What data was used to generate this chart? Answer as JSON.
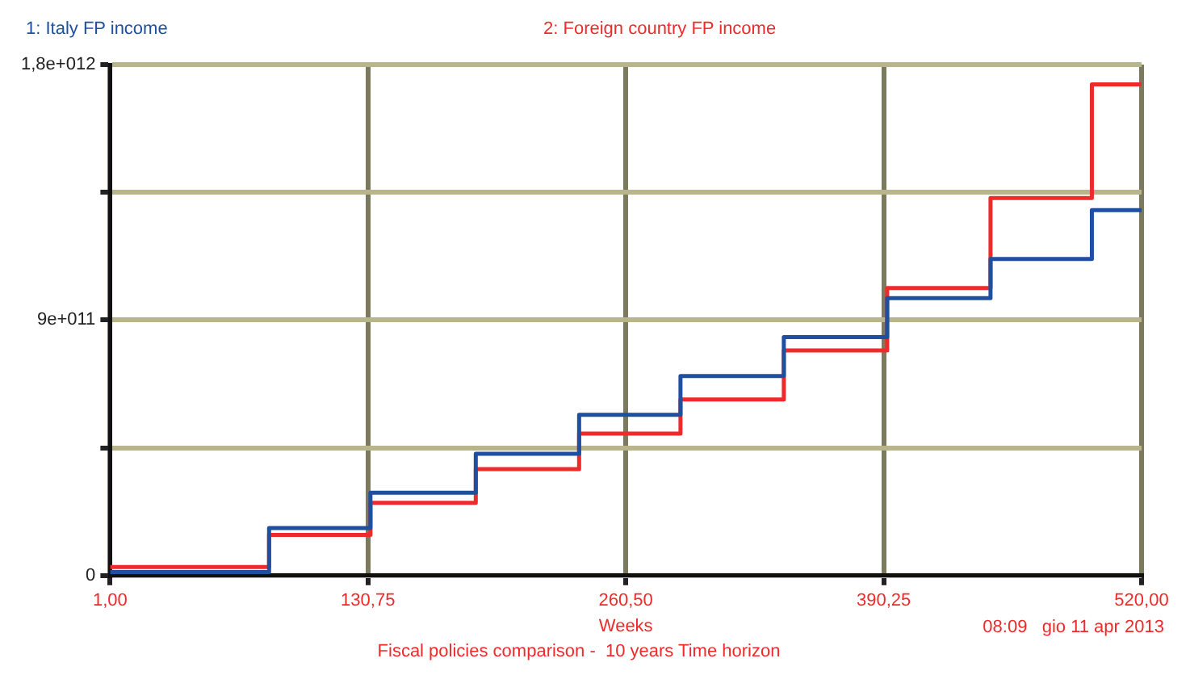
{
  "chart_data": {
    "type": "step",
    "title": "Fiscal policies comparison -  10 years Time horizon",
    "xlabel": "Weeks",
    "annotations": [
      "08:09   gio 11 apr 2013"
    ],
    "x": [
      1,
      81,
      132,
      185,
      237,
      288,
      340,
      392,
      444,
      495,
      520
    ],
    "series": [
      {
        "name": "1: Italy FP income",
        "color": "#1f4fa0",
        "values": [
          12000000000.0,
          167000000000.0,
          292000000000.0,
          429000000000.0,
          566000000000.0,
          703000000000.0,
          840000000000.0,
          977000000000.0,
          1115000000000.0,
          1287000000000.0,
          1287000000000.0
        ]
      },
      {
        "name": "2: Foreign country FP income",
        "color": "#ee2a2a",
        "values": [
          30000000000.0,
          143000000000.0,
          256000000000.0,
          375000000000.0,
          500000000000.0,
          620000000000.0,
          793000000000.0,
          1013000000000.0,
          1330000000000.0,
          1730000000000.0,
          1730000000000.0
        ]
      }
    ],
    "xlim": [
      1,
      520
    ],
    "xticks": [
      {
        "value": 1,
        "label": "1,00"
      },
      {
        "value": 130.75,
        "label": "130,75"
      },
      {
        "value": 260.5,
        "label": "260,50"
      },
      {
        "value": 390.25,
        "label": "390,25"
      },
      {
        "value": 520,
        "label": "520,00"
      }
    ],
    "ylim": [
      0,
      1800000000000.0
    ],
    "yticks": [
      0,
      {
        "value": 450000000000.0,
        "label": null
      },
      {
        "value": 900000000000.0,
        "label": "9e+011"
      },
      {
        "value": 1350000000000.0,
        "label": null
      },
      {
        "value": 1800000000000.0,
        "label": "1,8e+012"
      }
    ],
    "grid": true,
    "legend": "top",
    "marker": "none",
    "line_style": "solid"
  }
}
